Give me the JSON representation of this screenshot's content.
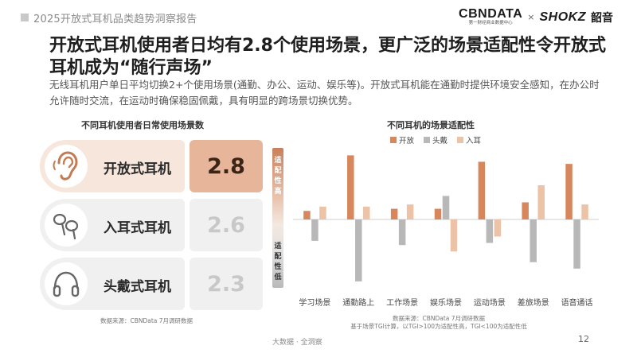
{
  "header": {
    "report_title": "2025开放式耳机品类趋势洞察报告",
    "brand_cbn": "CBNDATA",
    "brand_cbn_sub": "第一财经商业数据中心",
    "brand_x": "×",
    "brand_shokz": "SHOKZ",
    "brand_cn": "韶音"
  },
  "title": "开放式耳机使用者日均有2.8个使用场景，更广泛的场景适配性令开放式耳机成为“随行声场”",
  "description": "无线耳机用户单日平均切换2+个使用场景(通勤、办公、运动、娱乐等)。开放式耳机能在通勤时提供环境安全感知，在办公时允许随时交流，在运动时确保稳固佩戴，具有明显的跨场景切换优势。",
  "left_panel": {
    "title": "不同耳机使用者日常使用场景数",
    "cards": [
      {
        "name": "开放式耳机",
        "value": "2.8",
        "icon": "ear-icon",
        "label_bg": "#f6e6dc",
        "value_bg": "#e6b59a",
        "value_color": "#3a2418"
      },
      {
        "name": "入耳式耳机",
        "value": "2.6",
        "icon": "earbuds-icon",
        "label_bg": "#f0f0f0",
        "value_bg": "#f0f0f0",
        "value_color": "#c8c8c8"
      },
      {
        "name": "头戴式耳机",
        "value": "2.3",
        "icon": "headphones-icon",
        "label_bg": "#f0f0f0",
        "value_bg": "#f0f0f0",
        "value_color": "#c8c8c8"
      }
    ],
    "source": "数据来源：CBNData 7月调研数据"
  },
  "right_panel": {
    "title": "不同耳机的场景适配性",
    "scale_high": "适配性高",
    "scale_low": "适配性低",
    "source_line1": "数据来源：CBNData 7月调研数据",
    "source_line2": "基于场景TGI计算，以TGI>100为适配性高，TGI<100为适配性低"
  },
  "chart_data": {
    "type": "bar",
    "categories": [
      "学习场景",
      "通勤路上",
      "工作场景",
      "娱乐场景",
      "运动场景",
      "差旅场景",
      "语音通话"
    ],
    "baseline": 100,
    "ylim": [
      68,
      132
    ],
    "series": [
      {
        "name": "开放",
        "color": "#d8875d",
        "values": [
          104,
          130,
          105,
          105,
          127,
          108,
          126
        ]
      },
      {
        "name": "头戴",
        "color": "#b8b8b8",
        "values": [
          90,
          71,
          88,
          111,
          89,
          80,
          77
        ]
      },
      {
        "name": "入耳",
        "color": "#ecc3a6",
        "values": [
          106,
          106,
          107,
          85,
          92,
          116,
          107
        ]
      }
    ]
  },
  "footer": {
    "text": "大数据 · 全洞察",
    "page": "12"
  }
}
